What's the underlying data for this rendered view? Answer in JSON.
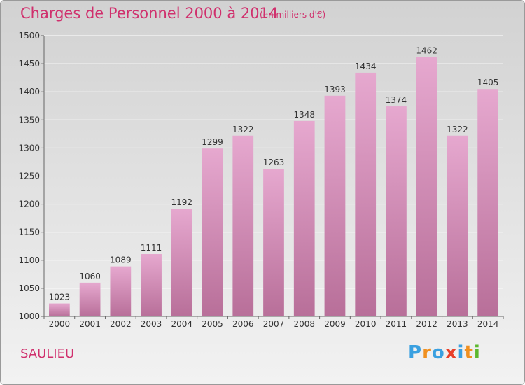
{
  "title": "Charges de Personnel 2000 à 2014",
  "subtitle": "(en milliers d'€)",
  "place": "SAULIEU",
  "brand": {
    "letters": [
      "P",
      "r",
      "o",
      "x",
      "i",
      "t",
      "i"
    ],
    "colors": [
      "#3aa0e0",
      "#f09020",
      "#3aa0e0",
      "#e8402a",
      "#3aa0e0",
      "#f09020",
      "#5cb82e"
    ]
  },
  "colors": {
    "bar_top": "#e6a8cf",
    "bar_bottom": "#b86f99",
    "text_accent": "#d0306d"
  },
  "chart_data": {
    "type": "bar",
    "categories": [
      "2000",
      "2001",
      "2002",
      "2003",
      "2004",
      "2005",
      "2006",
      "2007",
      "2008",
      "2009",
      "2010",
      "2011",
      "2012",
      "2013",
      "2014"
    ],
    "values": [
      1023,
      1060,
      1089,
      1111,
      1192,
      1299,
      1322,
      1263,
      1348,
      1393,
      1434,
      1374,
      1462,
      1322,
      1405
    ],
    "ylim": [
      1000,
      1500
    ],
    "yticks": [
      1000,
      1050,
      1100,
      1150,
      1200,
      1250,
      1300,
      1350,
      1400,
      1450,
      1500
    ],
    "grid": true,
    "data_labels": true
  }
}
